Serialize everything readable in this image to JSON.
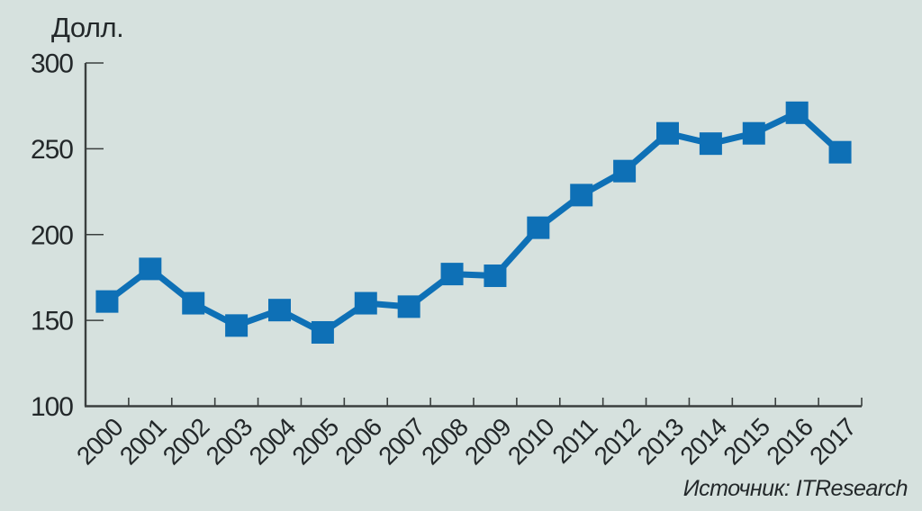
{
  "page": {
    "background_color": "#d6e1de"
  },
  "chart_data": {
    "type": "line",
    "title": "",
    "ylabel": "Долл.",
    "xlabel": "",
    "source": "Источник: ITResearch",
    "categories": [
      "2000",
      "2001",
      "2002",
      "2003",
      "2004",
      "2005",
      "2006",
      "2007",
      "2008",
      "2009",
      "2010",
      "2011",
      "2012",
      "2013",
      "2014",
      "2015",
      "2016",
      "2017"
    ],
    "values": [
      161,
      180,
      160,
      147,
      156,
      143,
      160,
      158,
      177,
      176,
      204,
      223,
      237,
      259,
      253,
      259,
      271,
      248
    ],
    "ylim": [
      100,
      300
    ],
    "yticks": [
      100,
      150,
      200,
      250,
      300
    ],
    "grid": false,
    "legend": "none",
    "marker": "square",
    "colors": {
      "line": "#0e70b6",
      "marker": "#0e70b6",
      "axis": "#3a3f3e",
      "text": "#23282a",
      "background": "#d6e1de"
    }
  }
}
